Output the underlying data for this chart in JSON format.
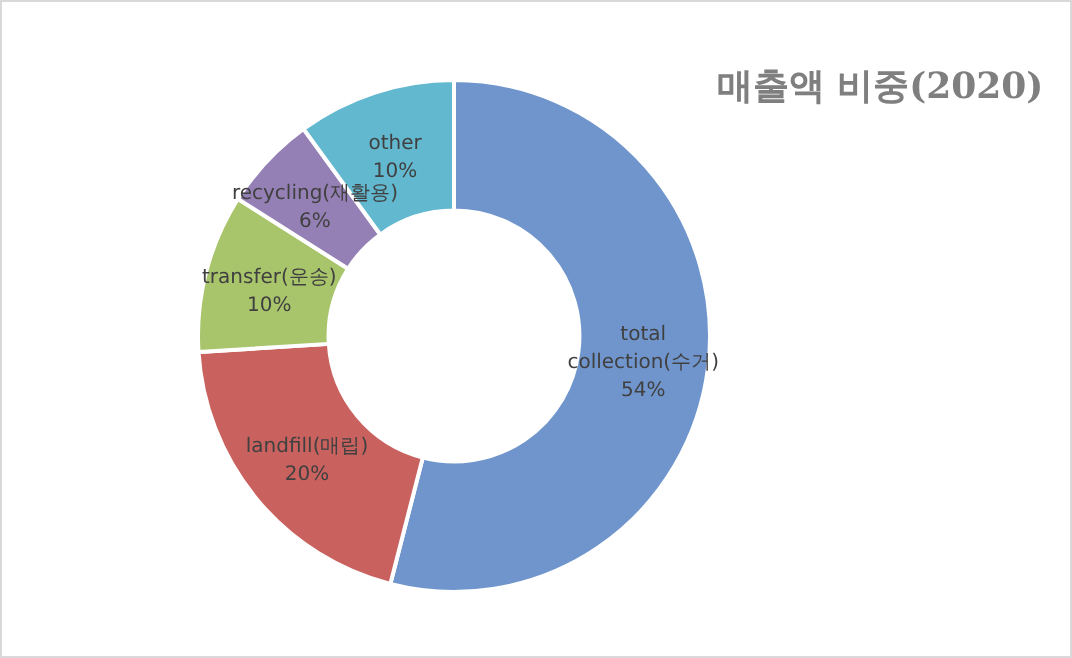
{
  "chart_data": {
    "type": "donut",
    "title": "매출액 비중(2020)",
    "categories": [
      "total collection(수거)",
      "landfill(매립)",
      "transfer(운송)",
      "recycling(재활용)",
      "other"
    ],
    "values": [
      54,
      20,
      10,
      6,
      10
    ],
    "colors": [
      "#6f95cc",
      "#c9625f",
      "#a9c56b",
      "#9580b5",
      "#62b8cf"
    ],
    "value_labels": [
      "54%",
      "20%",
      "10%",
      "6%",
      "10%"
    ]
  }
}
